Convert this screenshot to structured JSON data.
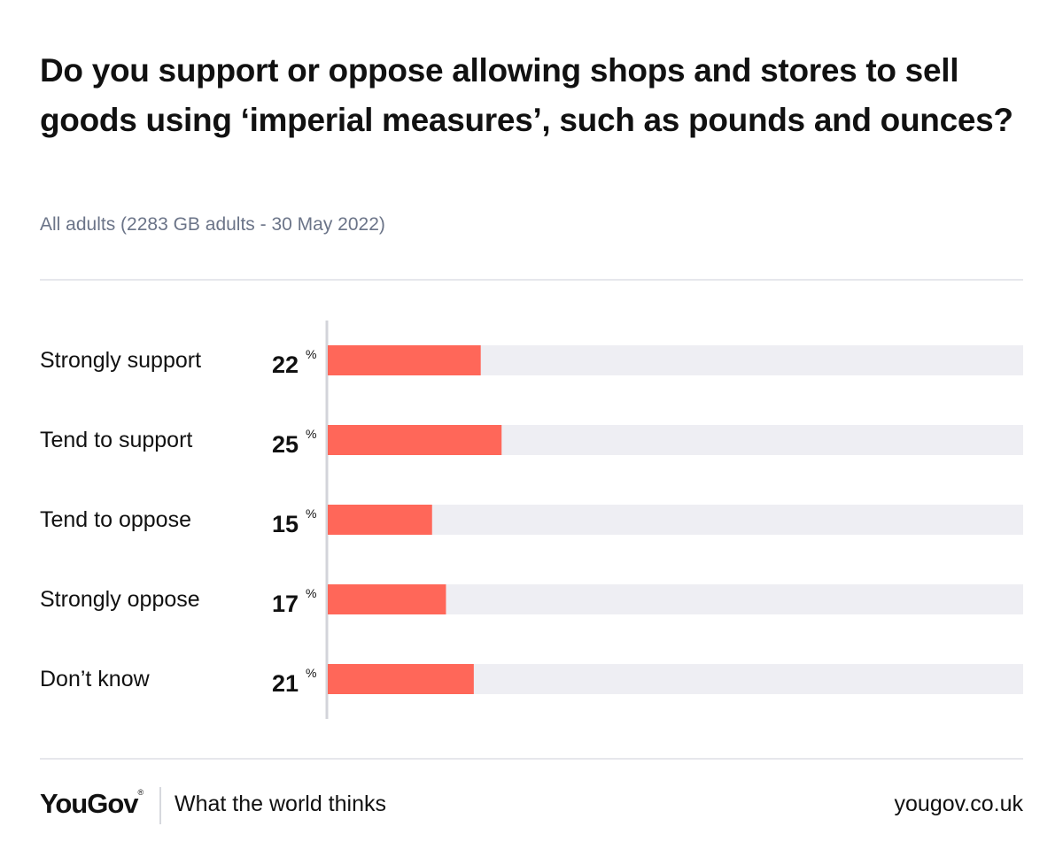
{
  "header": {
    "title": "Do you support or oppose allowing shops and stores to sell goods using ‘imperial measures’, such as pounds and ounces?",
    "subtitle": "All adults (2283 GB adults - 30 May 2022)"
  },
  "chart_data": {
    "type": "bar",
    "orientation": "horizontal",
    "categories": [
      "Strongly support",
      "Tend to support",
      "Tend to oppose",
      "Strongly oppose",
      "Don’t know"
    ],
    "values": [
      22,
      25,
      15,
      17,
      21
    ],
    "unit": "%",
    "xlim": [
      0,
      100
    ],
    "title": "Do you support or oppose allowing shops and stores to sell goods using ‘imperial measures’, such as pounds and ounces?",
    "xlabel": "",
    "ylabel": "",
    "colors": {
      "bar": "#ff6759",
      "track": "#eeeef3",
      "axis": "#d3d4da"
    }
  },
  "footer": {
    "brand": "YouGov",
    "brand_mark": "®",
    "tagline": "What the world thinks",
    "url": "yougov.co.uk"
  }
}
